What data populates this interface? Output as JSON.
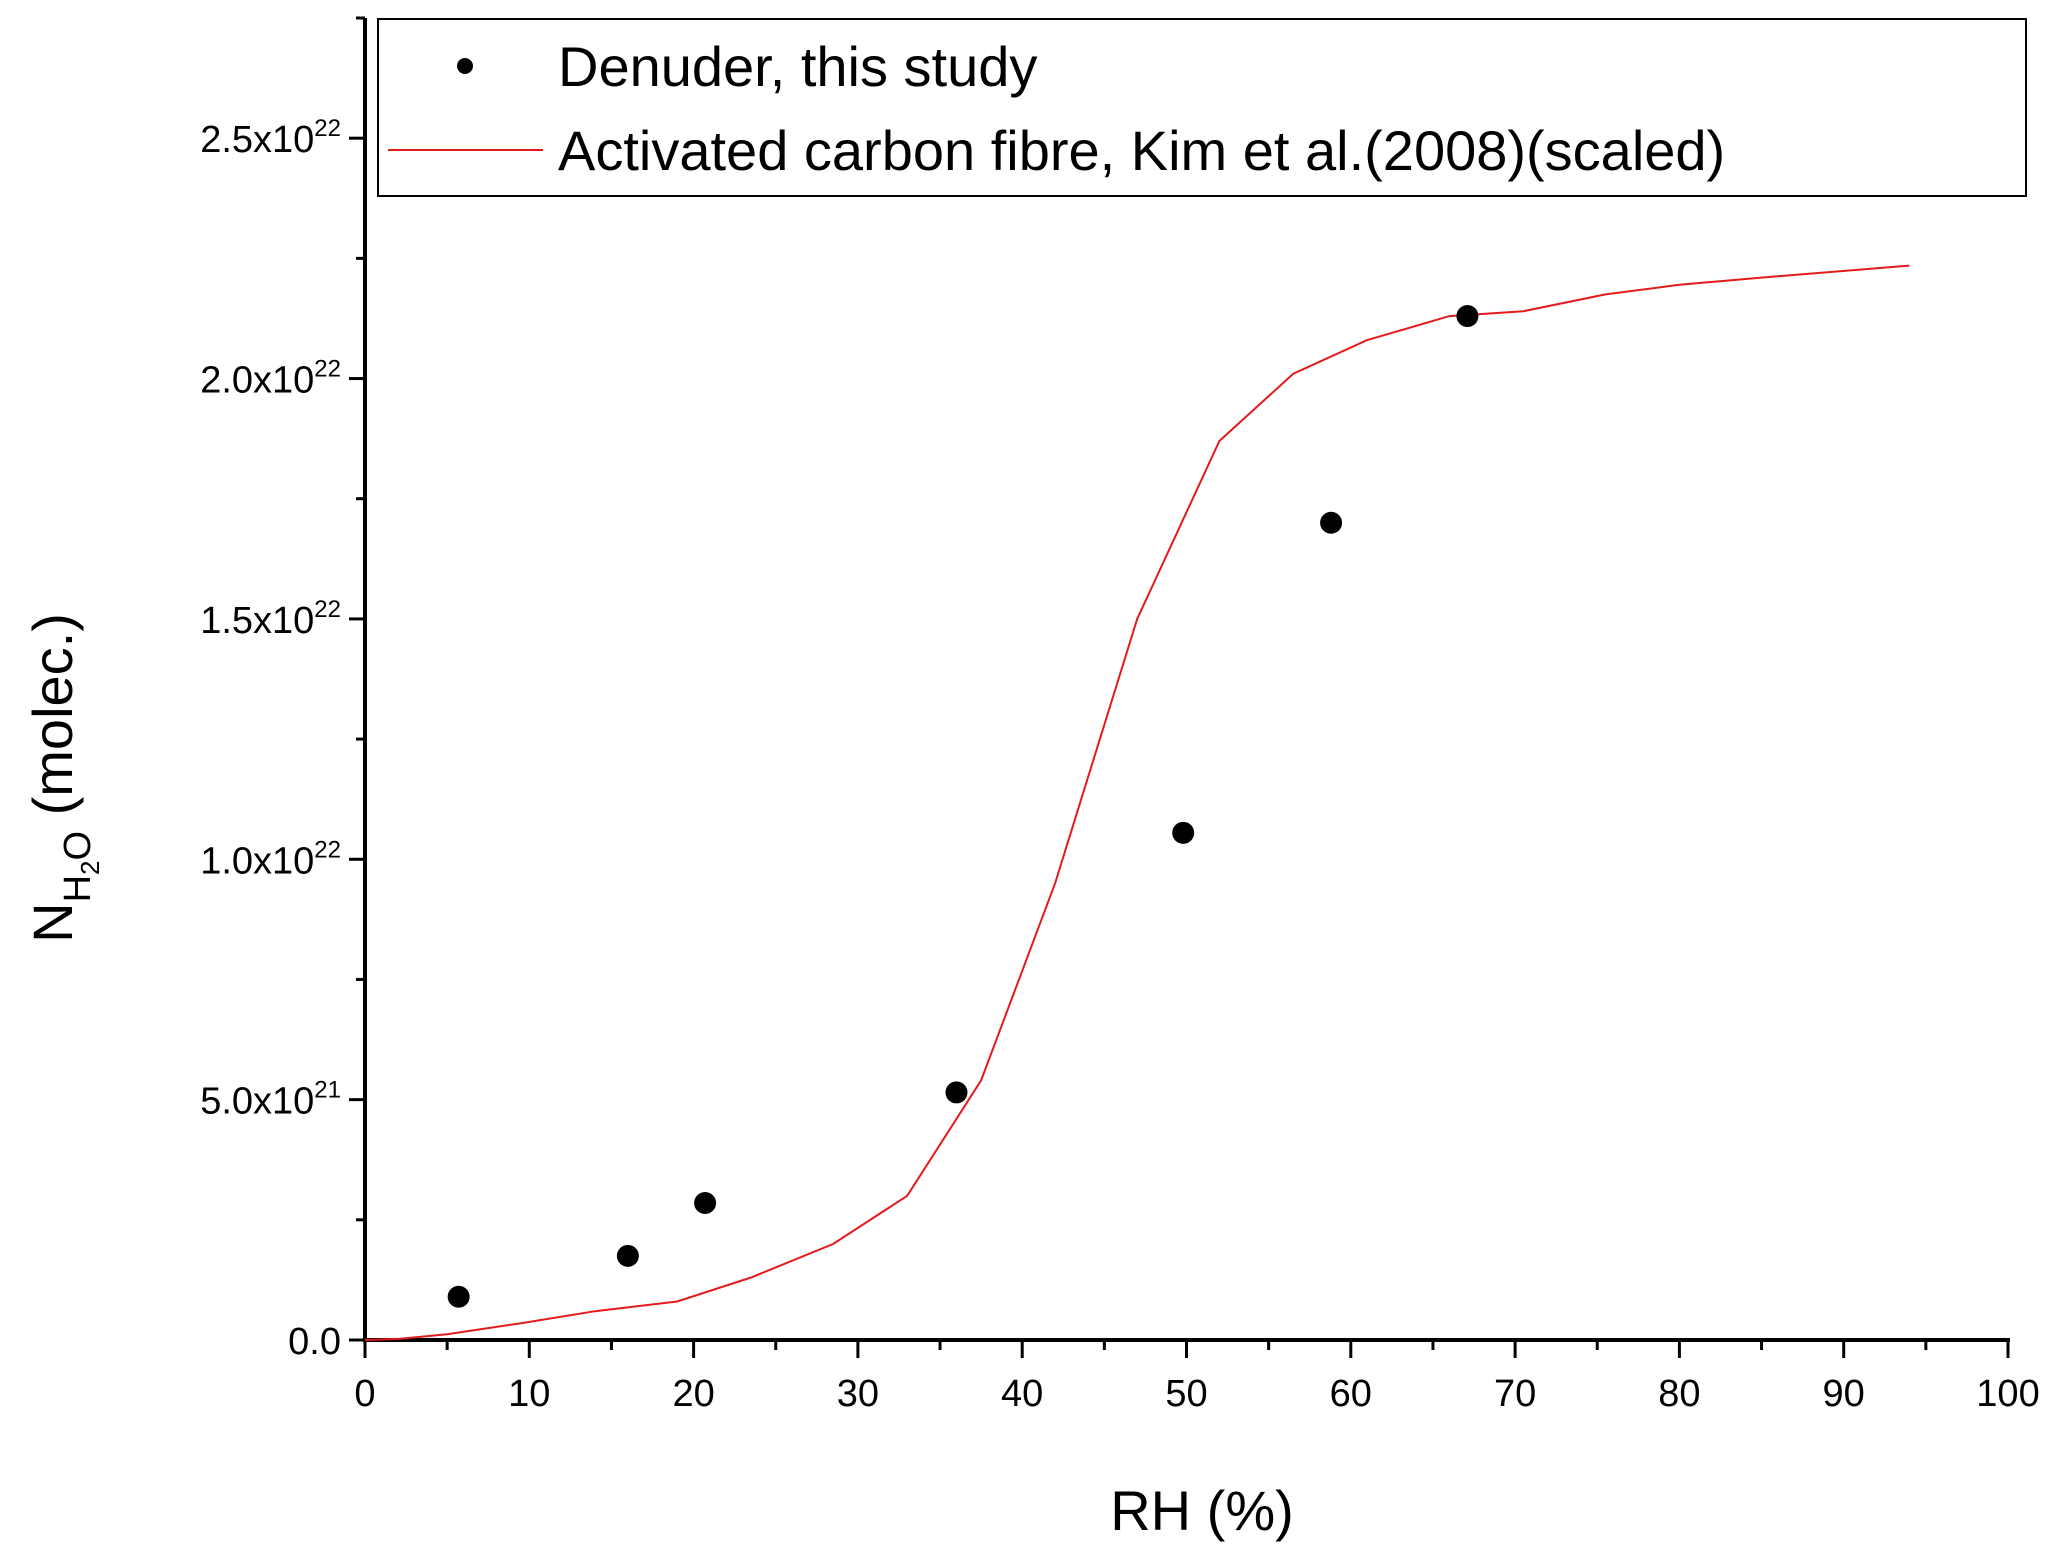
{
  "chart_data": {
    "type": "scatter",
    "xlabel": "RH (%)",
    "ylabel": {
      "main": "N",
      "sub": "H",
      "subsub": "2",
      "sub_tail": "O",
      "tail": " (molec.)"
    },
    "xlim": [
      0,
      100
    ],
    "ylim": [
      0,
      2.75e+22
    ],
    "x_ticks": [
      0,
      10,
      20,
      30,
      40,
      50,
      60,
      70,
      80,
      90,
      100
    ],
    "x_tick_labels": [
      "0",
      "10",
      "20",
      "30",
      "40",
      "50",
      "60",
      "70",
      "80",
      "90",
      "100"
    ],
    "y_ticks": [
      0,
      5e+21,
      1e+22,
      1.5e+22,
      2e+22,
      2.5e+22
    ],
    "y_tick_labels": [
      {
        "mantissa": "0.0",
        "exp": ""
      },
      {
        "mantissa": "5.0x10",
        "exp": "21"
      },
      {
        "mantissa": "1.0x10",
        "exp": "22"
      },
      {
        "mantissa": "1.5x10",
        "exp": "22"
      },
      {
        "mantissa": "2.0x10",
        "exp": "22"
      },
      {
        "mantissa": "2.5x10",
        "exp": "22"
      }
    ],
    "legend_position": "top",
    "series": [
      {
        "name": "Denuder, this study",
        "type": "scatter",
        "color": "#000000",
        "x": [
          5.7,
          16.0,
          20.7,
          36.0,
          49.8,
          58.8,
          67.1
        ],
        "y": [
          9e+20,
          1.75e+21,
          2.85e+21,
          5.15e+21,
          1.055e+22,
          1.7e+22,
          2.13e+22
        ]
      },
      {
        "name": "Activated carbon fibre, Kim et al.(2008)(scaled)",
        "type": "line",
        "color": "#e41a1c",
        "x": [
          0,
          2,
          5,
          9.5,
          14,
          19,
          23.5,
          28.5,
          33,
          37.5,
          42,
          47,
          52,
          56.5,
          61,
          66,
          70.5,
          75.5,
          80,
          85,
          94
        ],
        "y": [
          0,
          2e+19,
          1.2e+20,
          3.5e+20,
          6e+20,
          8e+20,
          1.3e+21,
          2e+21,
          3e+21,
          5.4e+21,
          9.5e+21,
          1.5e+22,
          1.87e+22,
          2.01e+22,
          2.08e+22,
          2.13e+22,
          2.14e+22,
          2.175e+22,
          2.195e+22,
          2.21e+22,
          2.235e+22
        ]
      }
    ]
  }
}
